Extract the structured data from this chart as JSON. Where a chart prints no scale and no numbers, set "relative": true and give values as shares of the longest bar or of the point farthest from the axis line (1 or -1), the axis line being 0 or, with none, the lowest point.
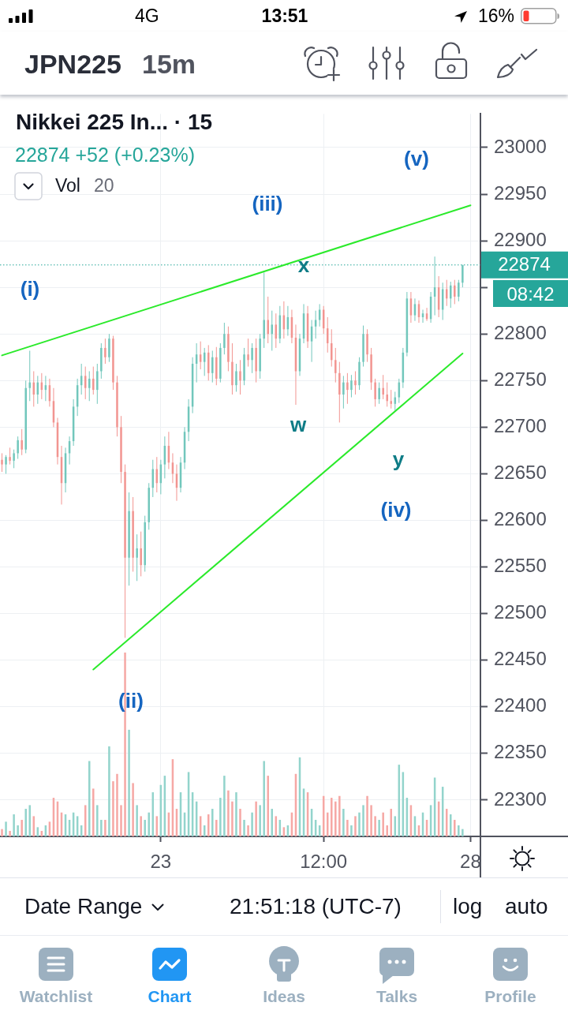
{
  "chart_data": [
    {
      "type": "candlestick",
      "title": "Nikkei 225 In... · 15",
      "subtitle": "22874 +52 (+0.23%)",
      "categories": [
        null,
        null,
        null,
        null,
        null,
        null,
        null,
        null,
        null,
        null,
        null,
        null,
        null,
        null,
        null,
        null,
        null,
        null,
        null,
        null,
        null,
        null,
        null,
        null,
        null,
        null,
        null,
        null,
        null,
        null,
        null,
        null,
        null,
        null,
        null,
        null,
        null,
        null,
        null,
        null,
        "23",
        null,
        null,
        null,
        null,
        null,
        null,
        null,
        null,
        null,
        null,
        null,
        null,
        null,
        null,
        null,
        null,
        null,
        null,
        null,
        null,
        null,
        null,
        null,
        null,
        null,
        null,
        null,
        null,
        null,
        null,
        null,
        null,
        null,
        null,
        null,
        null,
        null,
        null,
        null,
        null,
        "12:00",
        null,
        null,
        null,
        null,
        null,
        null,
        null,
        null,
        null,
        null,
        null,
        null,
        null,
        null,
        null,
        null,
        null,
        null,
        null,
        null,
        null,
        null,
        null,
        null,
        null,
        null,
        null,
        null,
        null,
        null,
        null,
        null,
        null,
        null,
        null,
        null,
        "28",
        null,
        null
      ],
      "ohlc": [
        [
          22665,
          22672,
          22652,
          22660
        ],
        [
          22660,
          22670,
          22650,
          22668
        ],
        [
          22668,
          22678,
          22660,
          22664
        ],
        [
          22664,
          22676,
          22656,
          22672
        ],
        [
          22672,
          22690,
          22666,
          22686
        ],
        [
          22686,
          22698,
          22670,
          22676
        ],
        [
          22676,
          22750,
          22672,
          22742
        ],
        [
          22742,
          22782,
          22728,
          22748
        ],
        [
          22748,
          22760,
          22722,
          22735
        ],
        [
          22735,
          22755,
          22725,
          22748
        ],
        [
          22748,
          22758,
          22730,
          22740
        ],
        [
          22740,
          22755,
          22728,
          22745
        ],
        [
          22745,
          22752,
          22722,
          22728
        ],
        [
          22728,
          22742,
          22700,
          22705
        ],
        [
          22705,
          22710,
          22660,
          22668
        ],
        [
          22668,
          22680,
          22617,
          22640
        ],
        [
          22640,
          22678,
          22630,
          22672
        ],
        [
          22672,
          22690,
          22660,
          22685
        ],
        [
          22685,
          22730,
          22680,
          22722
        ],
        [
          22722,
          22752,
          22712,
          22745
        ],
        [
          22745,
          22768,
          22735,
          22755
        ],
        [
          22755,
          22765,
          22730,
          22742
        ],
        [
          22742,
          22760,
          22728,
          22752
        ],
        [
          22752,
          22765,
          22735,
          22740
        ],
        [
          22740,
          22768,
          22725,
          22760
        ],
        [
          22760,
          22790,
          22752,
          22785
        ],
        [
          22785,
          22795,
          22768,
          22775
        ],
        [
          22775,
          22800,
          22770,
          22795
        ],
        [
          22795,
          22798,
          22740,
          22748
        ],
        [
          22748,
          22755,
          22690,
          22700
        ],
        [
          22700,
          22712,
          22640,
          22652
        ],
        [
          22652,
          22660,
          22474,
          22560
        ],
        [
          22560,
          22630,
          22530,
          22610
        ],
        [
          22610,
          22625,
          22545,
          22560
        ],
        [
          22560,
          22585,
          22535,
          22570
        ],
        [
          22570,
          22588,
          22540,
          22552
        ],
        [
          22552,
          22605,
          22545,
          22598
        ],
        [
          22598,
          22640,
          22590,
          22635
        ],
        [
          22635,
          22665,
          22625,
          22655
        ],
        [
          22655,
          22668,
          22630,
          22640
        ],
        [
          22640,
          22665,
          22628,
          22660
        ],
        [
          22660,
          22690,
          22645,
          22680
        ],
        [
          22680,
          22695,
          22655,
          22662
        ],
        [
          22662,
          22672,
          22640,
          22650
        ],
        [
          22650,
          22660,
          22621,
          22635
        ],
        [
          22635,
          22668,
          22630,
          22662
        ],
        [
          22662,
          22700,
          22655,
          22695
        ],
        [
          22695,
          22730,
          22685,
          22722
        ],
        [
          22722,
          22775,
          22715,
          22768
        ],
        [
          22768,
          22790,
          22748,
          22778
        ],
        [
          22778,
          22792,
          22762,
          22770
        ],
        [
          22770,
          22785,
          22755,
          22780
        ],
        [
          22780,
          22788,
          22750,
          22758
        ],
        [
          22758,
          22782,
          22748,
          22775
        ],
        [
          22775,
          22786,
          22745,
          22752
        ],
        [
          22752,
          22790,
          22748,
          22785
        ],
        [
          22785,
          22812,
          22778,
          22800
        ],
        [
          22800,
          22808,
          22760,
          22770
        ],
        [
          22770,
          22790,
          22735,
          22745
        ],
        [
          22745,
          22768,
          22738,
          22760
        ],
        [
          22760,
          22772,
          22735,
          22750
        ],
        [
          22750,
          22785,
          22745,
          22778
        ],
        [
          22778,
          22795,
          22765,
          22772
        ],
        [
          22772,
          22790,
          22758,
          22785
        ],
        [
          22785,
          22795,
          22748,
          22760
        ],
        [
          22760,
          22800,
          22752,
          22795
        ],
        [
          22795,
          22866,
          22785,
          22815
        ],
        [
          22815,
          22840,
          22790,
          22800
        ],
        [
          22800,
          22825,
          22782,
          22810
        ],
        [
          22810,
          22822,
          22785,
          22795
        ],
        [
          22795,
          22830,
          22790,
          22820
        ],
        [
          22820,
          22835,
          22795,
          22805
        ],
        [
          22805,
          22830,
          22798,
          22818
        ],
        [
          22818,
          22826,
          22790,
          22796
        ],
        [
          22796,
          22810,
          22724,
          22760
        ],
        [
          22760,
          22800,
          22755,
          22795
        ],
        [
          22795,
          22832,
          22790,
          22822
        ],
        [
          22822,
          22830,
          22785,
          22792
        ],
        [
          22792,
          22815,
          22770,
          22808
        ],
        [
          22808,
          22825,
          22795,
          22815
        ],
        [
          22815,
          22832,
          22808,
          22826
        ],
        [
          22826,
          22830,
          22800,
          22806
        ],
        [
          22806,
          22818,
          22780,
          22790
        ],
        [
          22790,
          22805,
          22765,
          22772
        ],
        [
          22772,
          22785,
          22748,
          22758
        ],
        [
          22758,
          22770,
          22705,
          22735
        ],
        [
          22735,
          22755,
          22720,
          22748
        ],
        [
          22748,
          22758,
          22725,
          22740
        ],
        [
          22740,
          22756,
          22732,
          22750
        ],
        [
          22750,
          22760,
          22735,
          22745
        ],
        [
          22745,
          22775,
          22740,
          22770
        ],
        [
          22770,
          22809,
          22765,
          22800
        ],
        [
          22800,
          22805,
          22770,
          22778
        ],
        [
          22778,
          22785,
          22740,
          22748
        ],
        [
          22748,
          22752,
          22722,
          22730
        ],
        [
          22730,
          22748,
          22725,
          22742
        ],
        [
          22742,
          22756,
          22730,
          22735
        ],
        [
          22735,
          22748,
          22722,
          22728
        ],
        [
          22728,
          22740,
          22720,
          22725
        ],
        [
          22725,
          22738,
          22718,
          22732
        ],
        [
          22732,
          22752,
          22726,
          22748
        ],
        [
          22748,
          22785,
          22742,
          22780
        ],
        [
          22780,
          22845,
          22776,
          22838
        ],
        [
          22838,
          22845,
          22812,
          22820
        ],
        [
          22820,
          22838,
          22814,
          22832
        ],
        [
          22832,
          22836,
          22812,
          22818
        ],
        [
          22818,
          22826,
          22812,
          22822
        ],
        [
          22822,
          22828,
          22814,
          22816
        ],
        [
          22816,
          22845,
          22812,
          22840
        ],
        [
          22840,
          22883,
          22820,
          22850
        ],
        [
          22850,
          22862,
          22818,
          22826
        ],
        [
          22826,
          22855,
          22815,
          22848
        ],
        [
          22848,
          22858,
          22830,
          22838
        ],
        [
          22838,
          22856,
          22828,
          22852
        ],
        [
          22852,
          22858,
          22832,
          22840
        ],
        [
          22840,
          22858,
          22835,
          22855
        ],
        [
          22855,
          22874,
          22850,
          22874
        ],
        null,
        null,
        null,
        null
      ],
      "colors": [
        "#f29591",
        "#72c7bc",
        "#f29591",
        "#72c7bc",
        "#72c7bc",
        "#f29591",
        "#72c7bc",
        "#72c7bc",
        "#f29591",
        "#72c7bc",
        "#f29591",
        "#72c7bc",
        "#f29591",
        "#f29591",
        "#f29591",
        "#f29591",
        "#72c7bc",
        "#72c7bc",
        "#72c7bc",
        "#72c7bc",
        "#72c7bc",
        "#f29591",
        "#72c7bc",
        "#f29591",
        "#72c7bc",
        "#72c7bc",
        "#f29591",
        "#72c7bc",
        "#f29591",
        "#f29591",
        "#f29591",
        "#f29591",
        "#72c7bc",
        "#f29591",
        "#72c7bc",
        "#f29591",
        "#72c7bc",
        "#72c7bc",
        "#72c7bc",
        "#f29591",
        "#72c7bc",
        "#72c7bc",
        "#f29591",
        "#f29591",
        "#f29591",
        "#72c7bc",
        "#72c7bc",
        "#72c7bc",
        "#72c7bc",
        "#72c7bc",
        "#f29591",
        "#72c7bc",
        "#f29591",
        "#72c7bc",
        "#f29591",
        "#72c7bc",
        "#72c7bc",
        "#f29591",
        "#f29591",
        "#72c7bc",
        "#f29591",
        "#72c7bc",
        "#f29591",
        "#72c7bc",
        "#f29591",
        "#72c7bc",
        "#72c7bc",
        "#f29591",
        "#72c7bc",
        "#f29591",
        "#72c7bc",
        "#f29591",
        "#72c7bc",
        "#f29591",
        "#f29591",
        "#72c7bc",
        "#72c7bc",
        "#f29591",
        "#72c7bc",
        "#72c7bc",
        "#72c7bc",
        "#f29591",
        "#f29591",
        "#f29591",
        "#f29591",
        "#f29591",
        "#72c7bc",
        "#f29591",
        "#72c7bc",
        "#f29591",
        "#72c7bc",
        "#72c7bc",
        "#f29591",
        "#f29591",
        "#f29591",
        "#72c7bc",
        "#f29591",
        "#f29591",
        "#f29591",
        "#72c7bc",
        "#72c7bc",
        "#72c7bc",
        "#72c7bc",
        "#f29591",
        "#72c7bc",
        "#f29591",
        "#72c7bc",
        "#f29591",
        "#72c7bc",
        "#72c7bc",
        "#f29591",
        "#72c7bc",
        "#f29591",
        "#72c7bc",
        "#f29591",
        "#72c7bc",
        "#72c7bc",
        null,
        null,
        null,
        null
      ],
      "series": [
        {
          "type": "line",
          "color": "#2bea2b",
          "values": [
            22777,
            null,
            null,
            null,
            null,
            null,
            null,
            null,
            null,
            null,
            null,
            null,
            null,
            null,
            null,
            null,
            null,
            null,
            null,
            null,
            null,
            null,
            null,
            null,
            null,
            null,
            null,
            null,
            null,
            null,
            null,
            null,
            null,
            null,
            null,
            null,
            null,
            null,
            null,
            null,
            null,
            null,
            null,
            null,
            null,
            null,
            null,
            null,
            null,
            null,
            null,
            null,
            null,
            null,
            null,
            null,
            null,
            null,
            null,
            null,
            null,
            null,
            null,
            null,
            null,
            null,
            null,
            null,
            null,
            null,
            null,
            null,
            null,
            null,
            null,
            null,
            null,
            null,
            null,
            null,
            null,
            null,
            null,
            null,
            null,
            null,
            null,
            null,
            null,
            null,
            null,
            null,
            null,
            null,
            null,
            null,
            null,
            null,
            null,
            null,
            null,
            null,
            null,
            null,
            null,
            null,
            null,
            null,
            null,
            null,
            null,
            null,
            null,
            null,
            null,
            null,
            null,
            null,
            22938,
            null,
            null
          ]
        },
        {
          "type": "line",
          "color": "#2bea2b",
          "values": [
            null,
            null,
            null,
            null,
            null,
            null,
            null,
            null,
            null,
            null,
            null,
            null,
            null,
            null,
            null,
            null,
            null,
            null,
            null,
            null,
            null,
            null,
            null,
            22440,
            null,
            null,
            null,
            null,
            null,
            null,
            null,
            null,
            null,
            null,
            null,
            null,
            null,
            null,
            null,
            null,
            null,
            null,
            null,
            null,
            null,
            null,
            null,
            null,
            null,
            null,
            null,
            null,
            null,
            null,
            null,
            null,
            null,
            null,
            null,
            null,
            null,
            null,
            null,
            null,
            null,
            null,
            null,
            null,
            null,
            null,
            null,
            null,
            null,
            null,
            null,
            null,
            null,
            null,
            null,
            null,
            null,
            null,
            null,
            null,
            null,
            null,
            null,
            null,
            null,
            null,
            null,
            null,
            null,
            null,
            null,
            null,
            null,
            null,
            null,
            null,
            null,
            null,
            null,
            null,
            null,
            null,
            null,
            null,
            null,
            null,
            null,
            null,
            null,
            null,
            null,
            null,
            22779,
            null,
            null,
            null,
            null
          ]
        }
      ],
      "ylim": [
        22261,
        23036
      ],
      "yticks": [
        22300,
        22350,
        22400,
        22450,
        22500,
        22550,
        22600,
        22650,
        22700,
        22750,
        22800,
        {
          "value": 22850,
          "label": null
        },
        22900,
        22950,
        23000
      ],
      "grid": true,
      "ref_lines": [
        {
          "axis": "y",
          "value": 22874,
          "label": "22874",
          "color": "#26a69a",
          "line_style": "dotted"
        }
      ],
      "annotations": [
        "4G",
        "13:51",
        "16%",
        "JPN225",
        "15m",
        "Vol",
        "20",
        "08:42",
        "Date Range",
        "21:51:18 (UTC-7)",
        "log",
        "auto",
        "Watchlist",
        "Chart",
        "Ideas",
        "Talks",
        "Profile",
        "(i)",
        "(ii)",
        "(iii)",
        "(iv)",
        "(v)",
        "w",
        "x",
        "y"
      ]
    },
    {
      "type": "bar",
      "relative": true,
      "tick_labels": false,
      "categories": [
        null,
        null,
        null,
        null,
        null,
        null,
        null,
        null,
        null,
        null,
        null,
        null,
        null,
        null,
        null,
        null,
        null,
        null,
        null,
        null,
        null,
        null,
        null,
        null,
        null,
        null,
        null,
        null,
        null,
        null,
        null,
        null,
        null,
        null,
        null,
        null,
        null,
        null,
        null,
        null,
        null,
        null,
        null,
        null,
        null,
        null,
        null,
        null,
        null,
        null,
        null,
        null,
        null,
        null,
        null,
        null,
        null,
        null,
        null,
        null,
        null,
        null,
        null,
        null,
        null,
        null,
        null,
        null,
        null,
        null,
        null,
        null,
        null,
        null,
        null,
        null,
        null,
        null,
        null,
        null,
        null,
        null,
        null,
        null,
        null,
        null,
        null,
        null,
        null,
        null,
        null,
        null,
        null,
        null,
        null,
        null,
        null,
        null,
        null,
        null,
        null,
        null,
        null,
        null,
        null,
        null,
        null,
        null,
        null,
        null,
        null,
        null,
        null,
        null,
        null,
        null,
        null,
        null,
        null,
        null,
        null
      ],
      "values": [
        0.04,
        0.08,
        0.03,
        0.12,
        0.06,
        0.09,
        0.15,
        0.17,
        0.11,
        0.05,
        0.03,
        0.06,
        0.08,
        0.21,
        0.19,
        0.13,
        0.12,
        0.09,
        0.13,
        0.11,
        0.06,
        0.17,
        0.41,
        0.26,
        0.17,
        0.09,
        0.09,
        0.49,
        0.3,
        0.34,
        0.17,
        1,
        0.58,
        0.29,
        0.17,
        0.11,
        0.09,
        0.13,
        0.24,
        0.11,
        0.28,
        0.33,
        0.13,
        0.42,
        0.15,
        0.24,
        0.13,
        0.35,
        0.24,
        0.19,
        0.11,
        0.06,
        0.12,
        0.15,
        0.09,
        0.21,
        0.33,
        0.25,
        0.19,
        0.24,
        0.15,
        0.09,
        0.06,
        0.13,
        0.19,
        0.17,
        0.41,
        0.33,
        0.15,
        0.11,
        0.09,
        0.05,
        0.06,
        0.13,
        0.34,
        0.43,
        0.26,
        0.24,
        0.15,
        0.09,
        0.06,
        0.22,
        0.13,
        0.21,
        0.19,
        0.22,
        0.15,
        0.09,
        0.06,
        0.11,
        0.13,
        0.17,
        0.22,
        0.17,
        0.11,
        0.09,
        0.13,
        0.06,
        0.15,
        0.11,
        0.39,
        0.35,
        0.21,
        0.17,
        0.11,
        0.06,
        0.13,
        0.09,
        0.17,
        0.32,
        0.19,
        0.27,
        0.15,
        0.12,
        0.09,
        0.06,
        0.04,
        null,
        null,
        null,
        null
      ],
      "colors": [
        "#f6a8a5",
        "#93d4cc",
        "#f6a8a5",
        "#93d4cc",
        "#93d4cc",
        "#f6a8a5",
        "#93d4cc",
        "#93d4cc",
        "#f6a8a5",
        "#93d4cc",
        "#f6a8a5",
        "#93d4cc",
        "#f6a8a5",
        "#f6a8a5",
        "#f6a8a5",
        "#f6a8a5",
        "#93d4cc",
        "#93d4cc",
        "#93d4cc",
        "#93d4cc",
        "#93d4cc",
        "#f6a8a5",
        "#93d4cc",
        "#f6a8a5",
        "#93d4cc",
        "#93d4cc",
        "#f6a8a5",
        "#93d4cc",
        "#f6a8a5",
        "#f6a8a5",
        "#f6a8a5",
        "#f6a8a5",
        "#93d4cc",
        "#f6a8a5",
        "#93d4cc",
        "#f6a8a5",
        "#93d4cc",
        "#93d4cc",
        "#93d4cc",
        "#f6a8a5",
        "#93d4cc",
        "#93d4cc",
        "#f6a8a5",
        "#f6a8a5",
        "#f6a8a5",
        "#93d4cc",
        "#93d4cc",
        "#93d4cc",
        "#93d4cc",
        "#93d4cc",
        "#f6a8a5",
        "#93d4cc",
        "#f6a8a5",
        "#93d4cc",
        "#f6a8a5",
        "#93d4cc",
        "#93d4cc",
        "#f6a8a5",
        "#f6a8a5",
        "#93d4cc",
        "#f6a8a5",
        "#93d4cc",
        "#f6a8a5",
        "#93d4cc",
        "#f6a8a5",
        "#93d4cc",
        "#93d4cc",
        "#f6a8a5",
        "#93d4cc",
        "#f6a8a5",
        "#93d4cc",
        "#f6a8a5",
        "#93d4cc",
        "#f6a8a5",
        "#f6a8a5",
        "#93d4cc",
        "#93d4cc",
        "#f6a8a5",
        "#93d4cc",
        "#93d4cc",
        "#93d4cc",
        "#f6a8a5",
        "#f6a8a5",
        "#f6a8a5",
        "#f6a8a5",
        "#f6a8a5",
        "#93d4cc",
        "#f6a8a5",
        "#93d4cc",
        "#f6a8a5",
        "#93d4cc",
        "#93d4cc",
        "#f6a8a5",
        "#f6a8a5",
        "#f6a8a5",
        "#93d4cc",
        "#f6a8a5",
        "#f6a8a5",
        "#f6a8a5",
        "#93d4cc",
        "#93d4cc",
        "#93d4cc",
        "#93d4cc",
        "#f6a8a5",
        "#93d4cc",
        "#f6a8a5",
        "#93d4cc",
        "#f6a8a5",
        "#93d4cc",
        "#93d4cc",
        "#f6a8a5",
        "#93d4cc",
        "#f6a8a5",
        "#93d4cc",
        "#f6a8a5",
        "#93d4cc",
        "#93d4cc",
        null,
        null,
        null,
        null
      ]
    }
  ]
}
